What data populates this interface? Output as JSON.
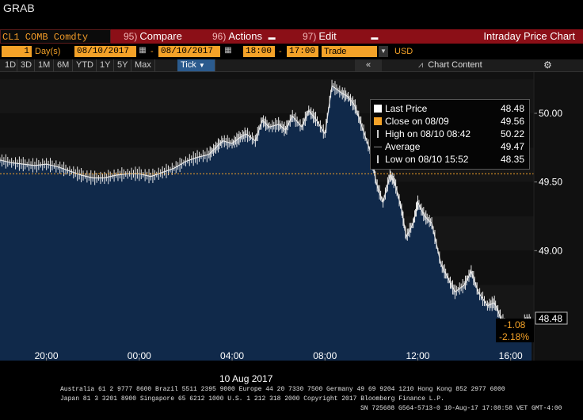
{
  "window": {
    "title": "GRAB"
  },
  "command_bar": {
    "ticker": "CL1 COMB Comdty",
    "compare": {
      "num": "95)",
      "label": "Compare"
    },
    "actions": {
      "num": "96)",
      "label": "Actions"
    },
    "edit": {
      "num": "97)",
      "label": "Edit"
    },
    "screen_title": "Intraday Price Chart"
  },
  "date_row": {
    "period_count": "1",
    "period_unit": "Day(s)",
    "start_date": "08/10/2017",
    "end_date": "08/10/2017",
    "start_time": "18:00",
    "end_time": "17:00",
    "field": "Trade",
    "currency": "USD"
  },
  "range_row": {
    "ranges": [
      "1D",
      "3D",
      "1M",
      "6M",
      "YTD",
      "1Y",
      "5Y",
      "Max"
    ],
    "tick_label": "Tick",
    "collapse_label": "«",
    "chart_content_label": "Chart Content"
  },
  "legend": {
    "items": [
      {
        "label": "Last Price",
        "value": "48.48",
        "color": "#ffffff"
      },
      {
        "label": "Close on 08/09",
        "value": "49.56",
        "color": "#f4a228"
      },
      {
        "label": "High on 08/10 08:42",
        "value": "50.22",
        "color": "#ffffff"
      },
      {
        "label": "Average",
        "value": "49.47",
        "color": "#ffffff"
      },
      {
        "label": "Low on 08/10 15:52",
        "value": "48.35",
        "color": "#ffffff"
      }
    ]
  },
  "price_tags": {
    "last": "48.48",
    "change": "-1.08",
    "change_pct": "-2.18%"
  },
  "colors": {
    "accent": "#f4a228",
    "command_bar": "#8b0f17",
    "area_fill": "#10294a",
    "chart_bg": "#131313"
  },
  "chart_data": {
    "type": "line",
    "ylim": [
      48.2,
      50.3
    ],
    "y_ticks": [
      "50.00",
      "49.50",
      "49.00"
    ],
    "y_tick_values": [
      50.0,
      49.5,
      49.0
    ],
    "x_tick_labels": [
      "20:00",
      "00:00",
      "04:00",
      "08:00",
      "12:00",
      "16:00"
    ],
    "x_tick_hours": [
      20,
      24,
      28,
      32,
      36,
      40
    ],
    "x_range_hours": [
      18,
      41
    ],
    "x_axis_date_label": "10 Aug 2017",
    "reference_line": {
      "label": "Close on 08/09",
      "value": 49.56
    },
    "series": [
      {
        "name": "Last Price",
        "x": [
          18.0,
          18.5,
          19.0,
          19.5,
          20.0,
          20.5,
          21.0,
          21.5,
          22.0,
          22.5,
          23.0,
          23.5,
          24.0,
          24.5,
          25.0,
          25.5,
          26.0,
          26.5,
          27.0,
          27.3,
          27.6,
          28.0,
          28.3,
          28.6,
          29.0,
          29.3,
          29.6,
          30.0,
          30.3,
          30.6,
          31.0,
          31.3,
          31.6,
          32.0,
          32.3,
          32.7,
          33.0,
          33.3,
          33.6,
          34.0,
          34.2,
          34.5,
          34.8,
          35.0,
          35.3,
          35.5,
          35.8,
          36.0,
          36.3,
          36.6,
          37.0,
          37.3,
          37.6,
          38.0,
          38.3,
          38.6,
          39.0,
          39.3,
          39.6,
          40.0,
          40.3,
          40.6,
          40.9
        ],
        "values": [
          49.66,
          49.64,
          49.63,
          49.62,
          49.63,
          49.61,
          49.58,
          49.55,
          49.53,
          49.53,
          49.55,
          49.56,
          49.56,
          49.54,
          49.57,
          49.6,
          49.65,
          49.68,
          49.7,
          49.75,
          49.8,
          49.78,
          49.82,
          49.85,
          49.8,
          49.95,
          49.9,
          49.92,
          49.88,
          49.98,
          49.9,
          50.02,
          49.96,
          49.85,
          50.2,
          50.15,
          50.12,
          50.05,
          49.9,
          49.7,
          49.5,
          49.35,
          49.55,
          49.5,
          49.3,
          49.1,
          49.2,
          49.35,
          49.25,
          49.2,
          48.9,
          48.8,
          48.7,
          48.75,
          48.85,
          48.7,
          48.6,
          48.62,
          48.5,
          48.42,
          48.4,
          48.5,
          48.48
        ]
      }
    ]
  },
  "footer": {
    "line1": "Australia 61 2 9777 8600 Brazil 5511 2395 9000 Europe 44 20 7330 7500 Germany 49 69 9204 1210 Hong Kong 852 2977 6000",
    "line2": "Japan 81 3 3201 8900          Singapore 65 6212 1000          U.S. 1 212 318 2000          Copyright 2017 Bloomberg Finance L.P.",
    "line3": "SN 725688 G564-5713-0 10-Aug-17 17:08:58 VET  GMT-4:00"
  }
}
